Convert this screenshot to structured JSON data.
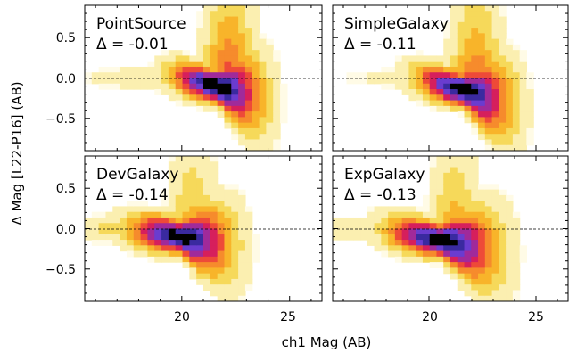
{
  "figure": {
    "ylabel": "Δ Mag [L22-P16] (AB)",
    "xlabel": "ch1 Mag (AB)"
  },
  "colors": {
    "colormap": [
      "#fffbe6",
      "#fbefb0",
      "#f6d95a",
      "#f8b42a",
      "#f68b2c",
      "#ee4a38",
      "#d61f5c",
      "#a02a9a",
      "#6a3ccf",
      "#3a2aa0",
      "#000000"
    ]
  },
  "chart_data": [
    {
      "type": "heatmap",
      "title": "PointSource",
      "annotation": "Δ = -0.01",
      "xlim": [
        15.5,
        26.5
      ],
      "ylim": [
        -0.9,
        0.9
      ],
      "xticks": [
        20,
        25
      ],
      "yticks": [
        -0.5,
        0.0,
        0.5
      ],
      "ytick_labels": [
        "−0.5",
        "0.0",
        "0.5"
      ],
      "reference_line_y": 0.0,
      "density_peak": {
        "x": 21.6,
        "y": -0.1
      }
    },
    {
      "type": "heatmap",
      "title": "SimpleGalaxy",
      "annotation": "Δ = -0.11",
      "xlim": [
        15.5,
        26.5
      ],
      "ylim": [
        -0.9,
        0.9
      ],
      "xticks": [
        20,
        25
      ],
      "yticks": [
        -0.5,
        0.0,
        0.5
      ],
      "reference_line_y": 0.0,
      "density_peak": {
        "x": 21.6,
        "y": -0.15
      }
    },
    {
      "type": "heatmap",
      "title": "DevGalaxy",
      "annotation": "Δ = -0.14",
      "xlim": [
        15.5,
        26.5
      ],
      "ylim": [
        -0.9,
        0.9
      ],
      "xticks": [
        20,
        25
      ],
      "xtick_labels": [
        "20",
        "25"
      ],
      "yticks": [
        -0.5,
        0.0,
        0.5
      ],
      "ytick_labels": [
        "−0.5",
        "0.0",
        "0.5"
      ],
      "reference_line_y": 0.0,
      "density_peak": {
        "x": 19.9,
        "y": -0.1
      }
    },
    {
      "type": "heatmap",
      "title": "ExpGalaxy",
      "annotation": "Δ = -0.13",
      "xlim": [
        15.5,
        26.5
      ],
      "ylim": [
        -0.9,
        0.9
      ],
      "xticks": [
        20,
        25
      ],
      "xtick_labels": [
        "20",
        "25"
      ],
      "yticks": [
        -0.5,
        0.0,
        0.5
      ],
      "reference_line_y": 0.0,
      "density_peak": {
        "x": 20.6,
        "y": -0.15
      }
    }
  ]
}
